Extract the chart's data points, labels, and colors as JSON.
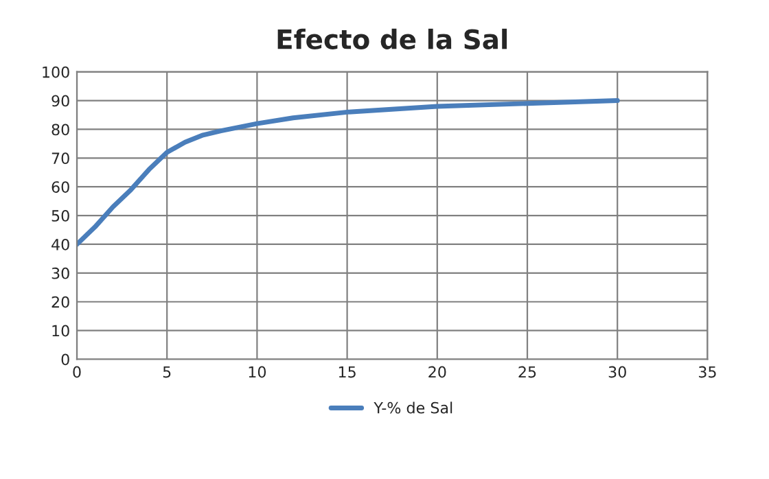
{
  "chart_data": {
    "type": "line",
    "title": "Efecto de la Sal",
    "x": [
      0,
      1,
      2,
      3,
      4,
      5,
      6,
      7,
      8,
      10,
      12,
      15,
      20,
      25,
      30
    ],
    "series": [
      {
        "name": "Y-% de Sal",
        "color": "#4a7ebb",
        "values": [
          40,
          46,
          53,
          59,
          66,
          72,
          75.5,
          78,
          79.5,
          82,
          84,
          86,
          88,
          89,
          90
        ]
      }
    ],
    "xlim": [
      0,
      35
    ],
    "xticks": [
      0,
      5,
      10,
      15,
      20,
      25,
      30,
      35
    ],
    "ylim": [
      0,
      100
    ],
    "yticks": [
      0,
      10,
      20,
      30,
      40,
      50,
      60,
      70,
      80,
      90,
      100
    ],
    "grid": true,
    "legend": "bottom",
    "marker": "none",
    "line_style": "solid"
  }
}
